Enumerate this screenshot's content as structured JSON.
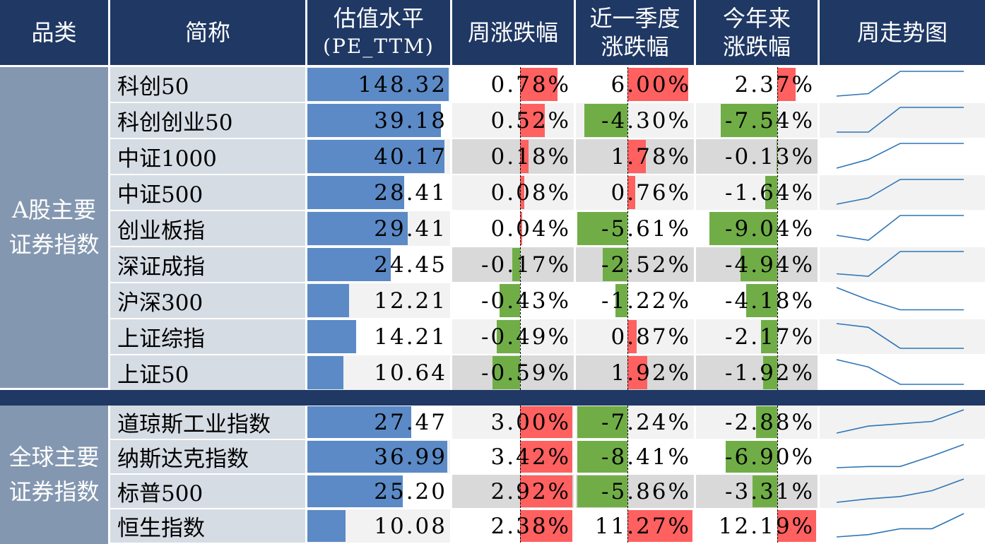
{
  "colors": {
    "header": "#1f3864",
    "group": "#8497b0",
    "pe_bar": "#5b8ac6",
    "up": "#ff6060",
    "down": "#70ad47",
    "spark": "#2e75b6"
  },
  "headers": {
    "category": "品类",
    "name": "简称",
    "pe_l1": "估值水平",
    "pe_l2": "(PE_TTM)",
    "week": "周涨跌幅",
    "quarter_l1": "近一季度",
    "quarter_l2": "涨跌幅",
    "ytd_l1": "今年来",
    "ytd_l2": "涨跌幅",
    "trend": "周走势图"
  },
  "groups": [
    {
      "label": "A股主要证券指数"
    },
    {
      "label": "全球主要证券指数"
    }
  ],
  "rows": [
    {
      "name": "科创50",
      "pe": "148.32",
      "pe_val": 148.32,
      "week": "0.78%",
      "week_val": 0.78,
      "quarter": "6.00%",
      "quarter_val": 6.0,
      "ytd": "2.37%",
      "ytd_val": 2.37,
      "trend": [
        3,
        2.8,
        1,
        1,
        1
      ]
    },
    {
      "name": "科创创业50",
      "pe": "39.18",
      "pe_val": 39.18,
      "week": "0.52%",
      "week_val": 0.52,
      "quarter": "-4.30%",
      "quarter_val": -4.3,
      "ytd": "-7.54%",
      "ytd_val": -7.54,
      "trend": [
        3,
        3,
        1,
        1,
        1
      ]
    },
    {
      "name": "中证1000",
      "pe": "40.17",
      "pe_val": 40.17,
      "week": "0.18%",
      "week_val": 0.18,
      "quarter": "1.78%",
      "quarter_val": 1.78,
      "ytd": "-0.13%",
      "ytd_val": -0.13,
      "trend": [
        3,
        2.3,
        1,
        1,
        1
      ]
    },
    {
      "name": "中证500",
      "pe": "28.41",
      "pe_val": 28.41,
      "week": "0.08%",
      "week_val": 0.08,
      "quarter": "0.76%",
      "quarter_val": 0.76,
      "ytd": "-1.64%",
      "ytd_val": -1.64,
      "trend": [
        3,
        2.5,
        1,
        1,
        1
      ]
    },
    {
      "name": "创业板指",
      "pe": "29.41",
      "pe_val": 29.41,
      "week": "0.04%",
      "week_val": 0.04,
      "quarter": "-5.61%",
      "quarter_val": -5.61,
      "ytd": "-9.04%",
      "ytd_val": -9.04,
      "trend": [
        2.6,
        3,
        1,
        1,
        1
      ]
    },
    {
      "name": "深证成指",
      "pe": "24.45",
      "pe_val": 24.45,
      "week": "-0.17%",
      "week_val": -0.17,
      "quarter": "-2.52%",
      "quarter_val": -2.52,
      "ytd": "-4.94%",
      "ytd_val": -4.94,
      "trend": [
        2.8,
        3,
        1,
        1,
        1
      ]
    },
    {
      "name": "沪深300",
      "pe": "12.21",
      "pe_val": 12.21,
      "week": "-0.43%",
      "week_val": -0.43,
      "quarter": "-1.22%",
      "quarter_val": -1.22,
      "ytd": "-4.18%",
      "ytd_val": -4.18,
      "trend": [
        1,
        2,
        2.8,
        2.8,
        2.8
      ]
    },
    {
      "name": "上证综指",
      "pe": "14.21",
      "pe_val": 14.21,
      "week": "-0.49%",
      "week_val": -0.49,
      "quarter": "0.87%",
      "quarter_val": 0.87,
      "ytd": "-2.17%",
      "ytd_val": -2.17,
      "trend": [
        1,
        1.3,
        3,
        3,
        3
      ]
    },
    {
      "name": "上证50",
      "pe": "10.64",
      "pe_val": 10.64,
      "week": "-0.59%",
      "week_val": -0.59,
      "quarter": "1.92%",
      "quarter_val": 1.92,
      "ytd": "-1.92%",
      "ytd_val": -1.92,
      "trend": [
        1,
        1.6,
        3,
        3,
        3
      ]
    },
    {
      "name": "道琼斯工业指数",
      "pe": "27.47",
      "pe_val": 27.47,
      "week": "3.00%",
      "week_val": 3.0,
      "quarter": "-7.24%",
      "quarter_val": -7.24,
      "ytd": "-2.88%",
      "ytd_val": -2.88,
      "trend": [
        3,
        2.4,
        2.2,
        2,
        1
      ]
    },
    {
      "name": "纳斯达克指数",
      "pe": "36.99",
      "pe_val": 36.99,
      "week": "3.42%",
      "week_val": 3.42,
      "quarter": "-8.41%",
      "quarter_val": -8.41,
      "ytd": "-6.90%",
      "ytd_val": -6.9,
      "trend": [
        3,
        2.9,
        2.9,
        2,
        1
      ]
    },
    {
      "name": "标普500",
      "pe": "25.20",
      "pe_val": 25.2,
      "week": "2.92%",
      "week_val": 2.92,
      "quarter": "-5.86%",
      "quarter_val": -5.86,
      "ytd": "-3.31%",
      "ytd_val": -3.31,
      "trend": [
        3,
        2.7,
        2.5,
        2,
        1
      ]
    },
    {
      "name": "恒生指数",
      "pe": "10.08",
      "pe_val": 10.08,
      "week": "2.38%",
      "week_val": 2.38,
      "quarter": "11.27%",
      "quarter_val": 11.27,
      "ytd": "12.19%",
      "ytd_val": 12.19,
      "trend": [
        3,
        2.8,
        2.3,
        2.3,
        1
      ]
    }
  ]
}
